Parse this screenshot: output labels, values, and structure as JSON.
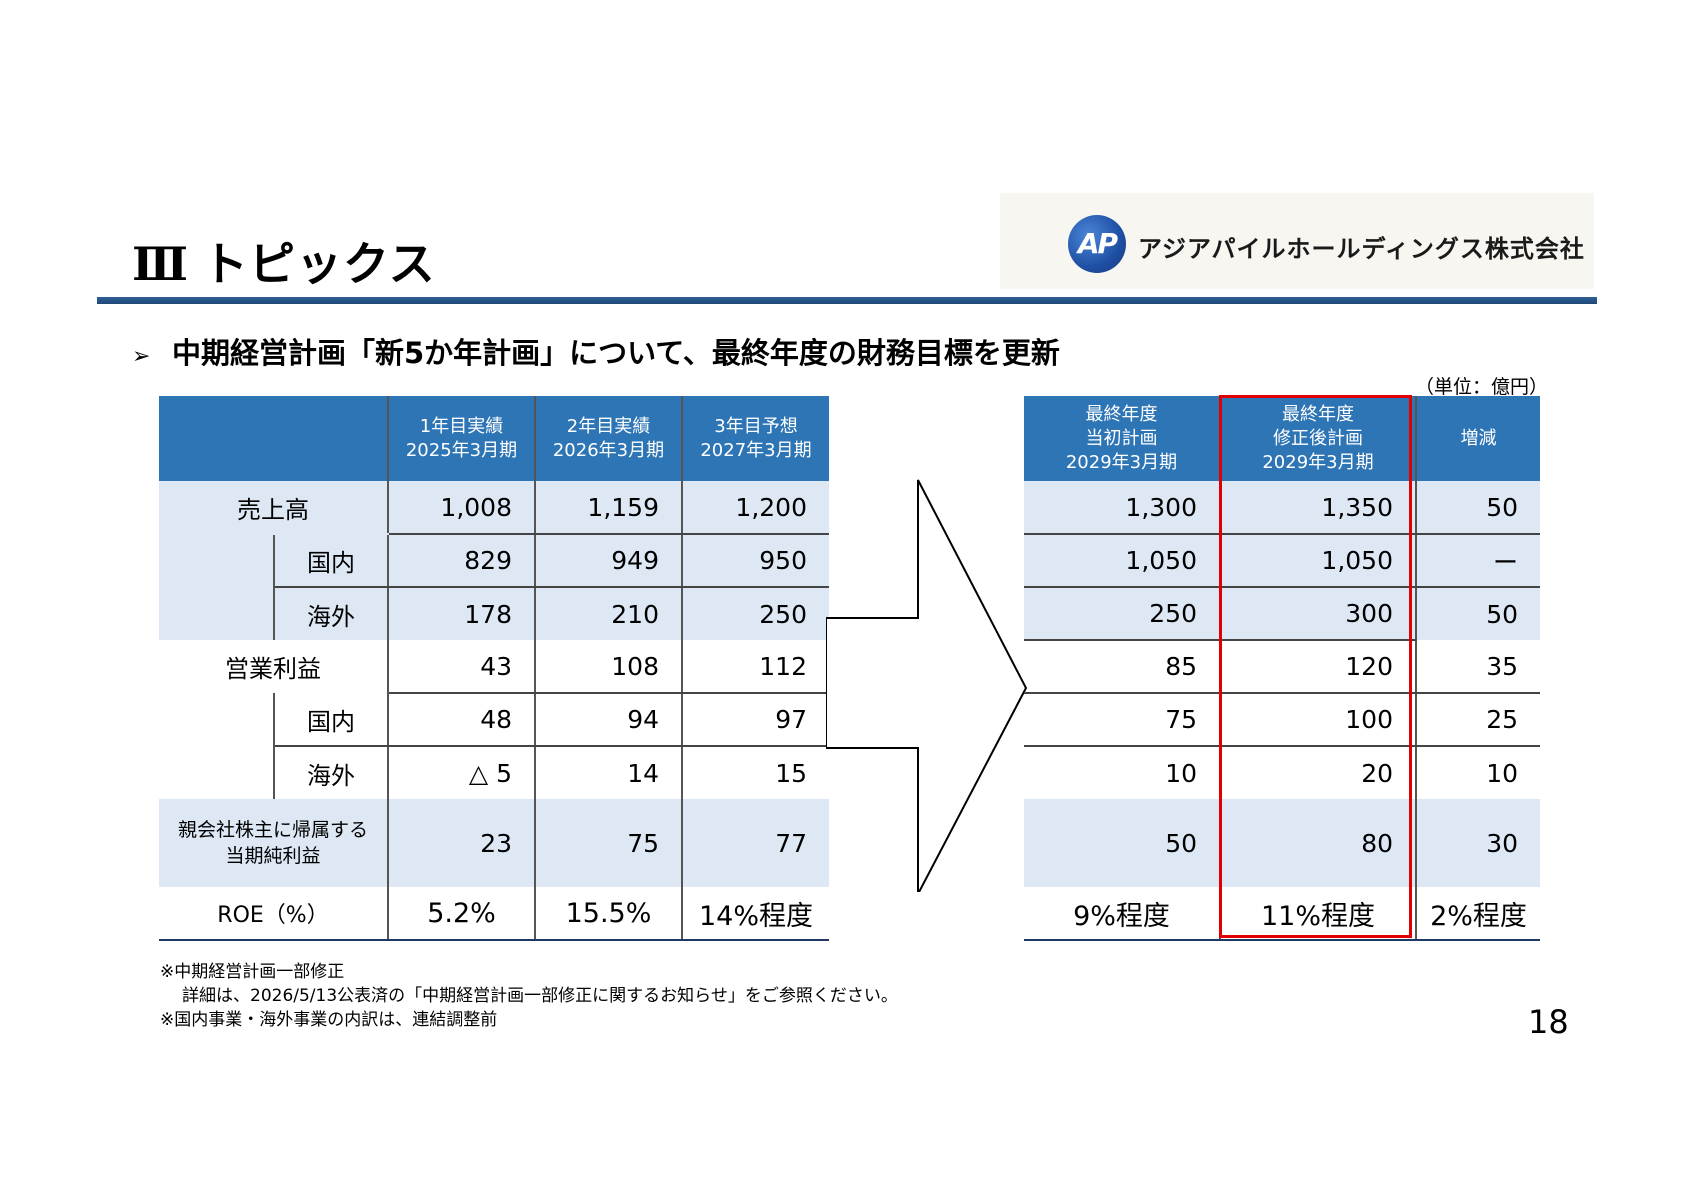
{
  "header": {
    "section_number": "Ⅲ",
    "section_title": "トピックス",
    "company_logo_text": "AP",
    "company_name": "アジアパイルホールディングス株式会社"
  },
  "subheading": "中期経営計画「新5か年計画」について、最終年度の財務目標を更新",
  "unit_note": "（単位：億円）",
  "left_table": {
    "col_headers": [
      [
        "1年目実績",
        "2025年3月期"
      ],
      [
        "2年目実績",
        "2026年3月期"
      ],
      [
        "3年目予想",
        "2027年3月期"
      ]
    ],
    "rows": [
      {
        "label": "売上高",
        "values": [
          "1,008",
          "1,159",
          "1,200"
        ]
      },
      {
        "label": "国内",
        "values": [
          "829",
          "949",
          "950"
        ]
      },
      {
        "label": "海外",
        "values": [
          "178",
          "210",
          "250"
        ]
      },
      {
        "label": "営業利益",
        "values": [
          "43",
          "108",
          "112"
        ]
      },
      {
        "label": "国内",
        "values": [
          "48",
          "94",
          "97"
        ]
      },
      {
        "label": "海外",
        "values": [
          "△ 5",
          "14",
          "15"
        ]
      },
      {
        "label_line1": "親会社株主に帰属する",
        "label_line2": "当期純利益",
        "values": [
          "23",
          "75",
          "77"
        ]
      },
      {
        "label": "ROE（%）",
        "values": [
          "5.2%",
          "15.5%",
          "14%程度"
        ]
      }
    ]
  },
  "right_table": {
    "col_headers": [
      [
        "最終年度",
        "当初計画",
        "2029年3月期"
      ],
      [
        "最終年度",
        "修正後計画",
        "2029年3月期"
      ],
      [
        "増減"
      ]
    ],
    "rows": [
      [
        "1,300",
        "1,350",
        "50"
      ],
      [
        "1,050",
        "1,050",
        "ー"
      ],
      [
        "250",
        "300",
        "50"
      ],
      [
        "85",
        "120",
        "35"
      ],
      [
        "75",
        "100",
        "25"
      ],
      [
        "10",
        "20",
        "10"
      ],
      [
        "50",
        "80",
        "30"
      ],
      [
        "9%程度",
        "11%程度",
        "2%程度"
      ]
    ]
  },
  "notes": [
    "※中期経営計画一部修正",
    "詳細は、2026/5/13公表済の「中期経営計画一部修正に関するお知らせ」をご参照ください。",
    "※国内事業・海外事業の内訳は、連結調整前"
  ],
  "page_number": "18",
  "colors": {
    "header_blue": "#2e75b6",
    "row_shade": "#dde8f4",
    "highlight_red": "#e00000",
    "rule_blue": "#1f4877"
  }
}
